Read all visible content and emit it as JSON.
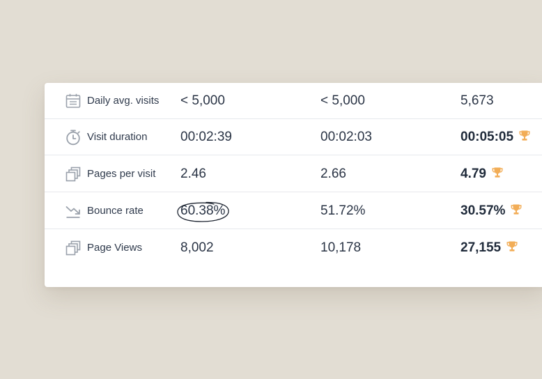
{
  "colors": {
    "page_background": "#e2ddd3",
    "card_background": "#ffffff",
    "divider": "#e6e8ec",
    "text": "#2a3445",
    "icon_gray": "#9aa1ab",
    "trophy": "#f2ad57"
  },
  "rows": [
    {
      "icon": "calendar-icon",
      "label": "Daily avg. visits",
      "values": [
        "< 5,000",
        "< 5,000",
        "5,673"
      ],
      "best_column": null
    },
    {
      "icon": "stopwatch-icon",
      "label": "Visit duration",
      "values": [
        "00:02:39",
        "00:02:03",
        "00:05:05"
      ],
      "best_column": 3
    },
    {
      "icon": "pages-icon",
      "label": "Pages per visit",
      "values": [
        "2.46",
        "2.66",
        "4.79"
      ],
      "best_column": 3
    },
    {
      "icon": "trend-down-icon",
      "label": "Bounce rate",
      "values": [
        "60.38%",
        "51.72%",
        "30.57%"
      ],
      "best_column": 3,
      "circled_column": 1
    },
    {
      "icon": "pages-icon",
      "label": "Page Views",
      "values": [
        "8,002",
        "10,178",
        "27,155"
      ],
      "best_column": 3
    }
  ],
  "best_marker_icon": "trophy-icon"
}
